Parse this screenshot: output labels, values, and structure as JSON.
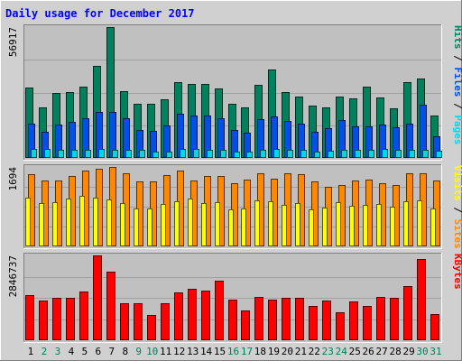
{
  "chart_data": {
    "type": "bar",
    "title": "Daily usage for December 2017",
    "x": [
      "1",
      "2",
      "3",
      "4",
      "5",
      "6",
      "7",
      "8",
      "9",
      "10",
      "11",
      "12",
      "13",
      "14",
      "15",
      "16",
      "17",
      "18",
      "19",
      "20",
      "21",
      "22",
      "23",
      "24",
      "25",
      "26",
      "27",
      "28",
      "29",
      "30",
      "31"
    ],
    "weekend_days": [
      "2",
      "3",
      "9",
      "10",
      "16",
      "17",
      "23",
      "24",
      "30",
      "31"
    ],
    "colors": {
      "hits": "#00805c",
      "files": "#0050e8",
      "pages": "#00d8e8",
      "visits": "#ffff00",
      "sites": "#ff8800",
      "kbytes": "#ff0000",
      "weekday_label": "#000000",
      "weekend_label": "#00805c",
      "panel_bg": "#c0c0c0",
      "frame_bg": "#d0d0d0"
    },
    "panels": [
      {
        "name": "hits-files-pages",
        "ymax_label": "56917",
        "ymax": 56917,
        "legend": [
          {
            "text": "Pages",
            "color": "#00d8e8"
          },
          {
            "text": " / ",
            "color": "#000000"
          },
          {
            "text": "Files",
            "color": "#0050e8"
          },
          {
            "text": " / ",
            "color": "#000000"
          },
          {
            "text": "Hits",
            "color": "#00805c"
          }
        ],
        "series": [
          {
            "name": "Hits",
            "color": "#00805c",
            "values": [
              30700,
              22000,
              28400,
              28800,
              30900,
              40200,
              56917,
              29100,
              23500,
              23700,
              25600,
              32900,
              32000,
              32000,
              30400,
              23700,
              21800,
              31900,
              38600,
              28800,
              26500,
              22900,
              21800,
              26700,
              26000,
              30900,
              26400,
              21600,
              32900,
              34600,
              18600
            ]
          },
          {
            "name": "Files",
            "color": "#0050e8",
            "values": [
              14800,
              11400,
              14400,
              15800,
              17200,
              20000,
              19900,
              17400,
              12100,
              11900,
              14100,
              19100,
              18600,
              18400,
              17100,
              12300,
              10900,
              16900,
              18000,
              15900,
              14900,
              11400,
              12900,
              16600,
              13600,
              13900,
              14400,
              13400,
              14800,
              23200,
              9600
            ]
          },
          {
            "name": "Pages",
            "color": "#00d8e8",
            "values": [
              3900,
              3800,
              3500,
              3600,
              3700,
              3800,
              3700,
              3500,
              3500,
              2800,
              2800,
              3800,
              3800,
              3700,
              3500,
              2900,
              2900,
              3700,
              3800,
              3700,
              3600,
              2900,
              3000,
              3700,
              3700,
              3700,
              3800,
              3500,
              3700,
              3500,
              3100
            ]
          }
        ]
      },
      {
        "name": "visits-sites",
        "ymax_label": "1694",
        "ymax": 1694,
        "legend": [
          {
            "text": "Sites",
            "color": "#ff8800"
          },
          {
            "text": " / ",
            "color": "#000000"
          },
          {
            "text": "Visits",
            "color": "#ffff00"
          }
        ],
        "series": [
          {
            "name": "Sites",
            "color": "#ff8800",
            "values": [
              1540,
              1400,
              1410,
              1500,
              1610,
              1650,
              1694,
              1550,
              1380,
              1390,
              1530,
              1610,
              1410,
              1500,
              1500,
              1350,
              1420,
              1560,
              1450,
              1550,
              1540,
              1380,
              1270,
              1300,
              1400,
              1420,
              1340,
              1310,
              1550,
              1560,
              1400
            ]
          },
          {
            "name": "Visits",
            "color": "#ffff00",
            "values": [
              1040,
              920,
              940,
              1020,
              1080,
              1030,
              1010,
              920,
              810,
              800,
              910,
              960,
              1020,
              930,
              950,
              790,
              810,
              980,
              970,
              880,
              920,
              790,
              820,
              950,
              870,
              890,
              910,
              850,
              960,
              980,
              800
            ]
          }
        ]
      },
      {
        "name": "kbytes",
        "ymax_label": "2846737",
        "ymax": 2846737,
        "legend": [
          {
            "text": "KBytes",
            "color": "#ff0000"
          }
        ],
        "series": [
          {
            "name": "KBytes",
            "color": "#ff0000",
            "values": [
              1520000,
              1330000,
              1420000,
              1410000,
              1650000,
              2846737,
              2300000,
              1230000,
              1230000,
              860000,
              1230000,
              1620000,
              1730000,
              1670000,
              2010000,
              1360000,
              1010000,
              1440000,
              1370000,
              1410000,
              1410000,
              1150000,
              1330000,
              940000,
              1300000,
              1160000,
              1450000,
              1430000,
              1820000,
              2730000,
              890000
            ]
          }
        ]
      }
    ]
  }
}
